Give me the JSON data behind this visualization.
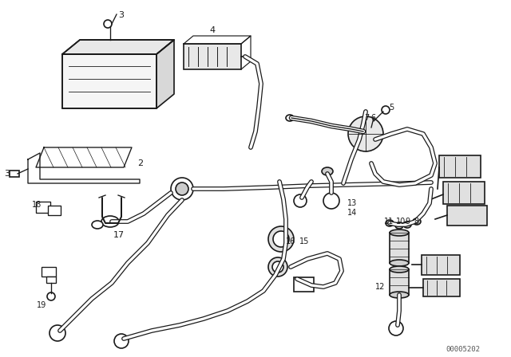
{
  "background_color": "#ffffff",
  "diagram_id": "00005202",
  "line_color": "#1a1a1a",
  "lw": 1.2
}
